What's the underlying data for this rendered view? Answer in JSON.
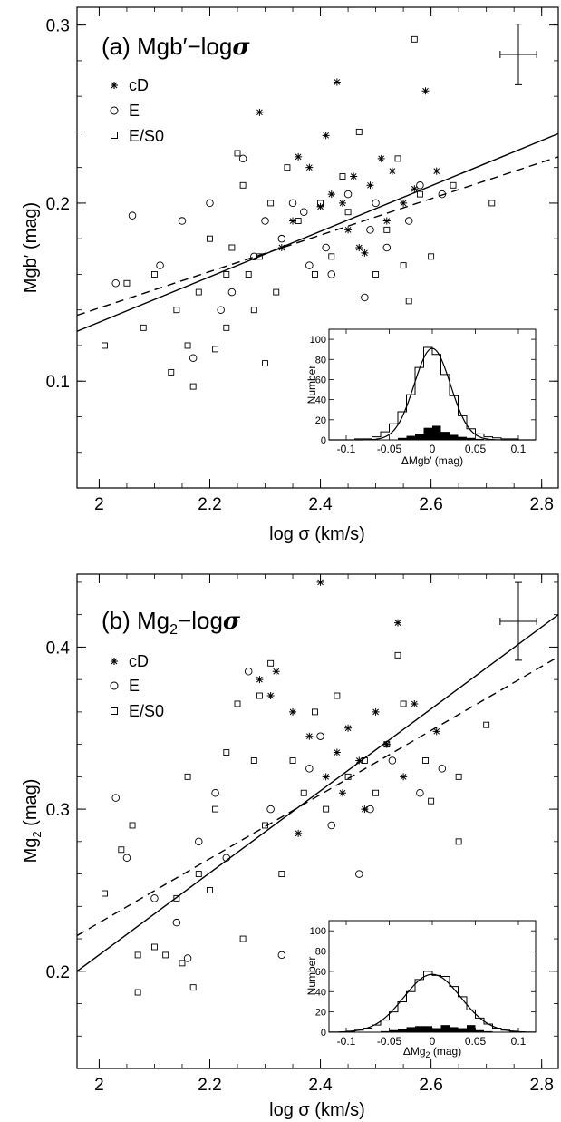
{
  "chart_data": [
    {
      "type": "scatter",
      "panel_label": "(a) Mgb′−logσ",
      "title_parts": {
        "prefix": "(a) Mgb′−log",
        "sigma": "σ"
      },
      "xlabel": "log σ (km/s)",
      "ylabel": "Mgb′ (mag)",
      "xlim": [
        1.96,
        2.83
      ],
      "ylim": [
        0.04,
        0.31
      ],
      "xticks": [
        2,
        2.2,
        2.4,
        2.6,
        2.8
      ],
      "xtick_labels": [
        "2",
        "2.2",
        "2.4",
        "2.6",
        "2.8"
      ],
      "yticks": [
        0.1,
        0.2,
        0.3
      ],
      "ytick_labels": [
        "0.1",
        "0.2",
        "0.3"
      ],
      "legend": [
        "cD",
        "E",
        "E/S0"
      ],
      "legend_position": "top-left",
      "fit_lines": [
        {
          "style": "solid",
          "x": [
            1.96,
            2.83
          ],
          "y": [
            0.128,
            0.239
          ]
        },
        {
          "style": "dashed",
          "x": [
            1.96,
            2.83
          ],
          "y": [
            0.137,
            0.226
          ]
        }
      ],
      "error_bar": {
        "position": "top-right",
        "xerr": 0.033,
        "yerr": 0.017
      },
      "series": [
        {
          "name": "cD",
          "marker": "asterisk",
          "x": [
            2.29,
            2.33,
            2.36,
            2.38,
            2.41,
            2.42,
            2.43,
            2.44,
            2.45,
            2.46,
            2.47,
            2.49,
            2.51,
            2.52,
            2.53,
            2.55,
            2.57,
            2.59,
            2.61,
            2.35,
            2.4,
            2.48
          ],
          "y": [
            0.251,
            0.175,
            0.226,
            0.22,
            0.238,
            0.205,
            0.268,
            0.2,
            0.185,
            0.215,
            0.175,
            0.21,
            0.225,
            0.19,
            0.218,
            0.2,
            0.208,
            0.263,
            0.218,
            0.19,
            0.198,
            0.172
          ]
        },
        {
          "name": "E",
          "marker": "circle",
          "x": [
            2.03,
            2.06,
            2.11,
            2.15,
            2.2,
            2.26,
            2.3,
            2.33,
            2.37,
            2.41,
            2.45,
            2.49,
            2.52,
            2.56,
            2.17,
            2.24,
            2.28,
            2.35,
            2.42,
            2.48,
            2.58,
            2.62,
            2.22,
            2.38,
            2.5
          ],
          "y": [
            0.155,
            0.193,
            0.165,
            0.19,
            0.2,
            0.225,
            0.19,
            0.18,
            0.195,
            0.175,
            0.205,
            0.185,
            0.175,
            0.19,
            0.113,
            0.15,
            0.17,
            0.2,
            0.16,
            0.147,
            0.21,
            0.205,
            0.14,
            0.165,
            0.2
          ]
        },
        {
          "name": "E/S0",
          "marker": "square",
          "x": [
            2.01,
            2.05,
            2.08,
            2.1,
            2.13,
            2.14,
            2.16,
            2.17,
            2.18,
            2.2,
            2.21,
            2.23,
            2.24,
            2.25,
            2.26,
            2.27,
            2.28,
            2.29,
            2.3,
            2.31,
            2.32,
            2.34,
            2.36,
            2.39,
            2.4,
            2.42,
            2.44,
            2.45,
            2.47,
            2.5,
            2.52,
            2.54,
            2.56,
            2.58,
            2.6,
            2.64,
            2.71,
            2.57,
            2.55,
            2.23
          ],
          "y": [
            0.12,
            0.155,
            0.13,
            0.16,
            0.105,
            0.14,
            0.12,
            0.097,
            0.15,
            0.18,
            0.118,
            0.13,
            0.175,
            0.228,
            0.21,
            0.16,
            0.14,
            0.17,
            0.11,
            0.2,
            0.15,
            0.22,
            0.19,
            0.16,
            0.2,
            0.17,
            0.215,
            0.195,
            0.24,
            0.16,
            0.185,
            0.225,
            0.145,
            0.205,
            0.17,
            0.21,
            0.2,
            0.292,
            0.165,
            0.16
          ]
        }
      ],
      "inset": {
        "type": "histogram",
        "position": "lower-right",
        "xlabel": "ΔMgb′ (mag)",
        "ylabel": "Number",
        "xlim": [
          -0.12,
          0.12
        ],
        "ylim": [
          0,
          110
        ],
        "xticks": [
          -0.1,
          -0.05,
          0,
          0.05,
          0.1
        ],
        "xtick_labels": [
          "-0.1",
          "-0.05",
          "0",
          "0.05",
          "0.1"
        ],
        "yticks": [
          0,
          20,
          40,
          60,
          80,
          100
        ],
        "ytick_labels": [
          "0",
          "20",
          "40",
          "60",
          "80",
          "100"
        ],
        "bin_width": 0.01,
        "bin_edges": [
          -0.1,
          -0.09,
          -0.08,
          -0.07,
          -0.06,
          -0.05,
          -0.04,
          -0.03,
          -0.02,
          -0.01,
          0,
          0.01,
          0.02,
          0.03,
          0.04,
          0.05,
          0.06,
          0.07,
          0.08,
          0.09,
          0.1
        ],
        "counts_all": [
          0,
          1,
          1,
          3,
          8,
          16,
          28,
          45,
          72,
          92,
          85,
          65,
          44,
          24,
          11,
          6,
          3,
          2,
          1,
          1
        ],
        "counts_cd": [
          0,
          0,
          0,
          0,
          0,
          0,
          2,
          4,
          6,
          12,
          14,
          8,
          5,
          3,
          2,
          1,
          0,
          0,
          0,
          0
        ],
        "gaussian": {
          "mean": 0.0,
          "sigma": 0.021,
          "peak": 91
        }
      }
    },
    {
      "type": "scatter",
      "panel_label": "(b) Mg2−logσ",
      "title_parts": {
        "prefix": "(b) Mg",
        "sub": "2",
        "suffix": "−log",
        "sigma": "σ"
      },
      "xlabel": "log σ (km/s)",
      "ylabel": "Mg2 (mag)",
      "ylabel_parts": {
        "prefix": "Mg",
        "sub": "2",
        "suffix": " (mag)"
      },
      "xlim": [
        1.96,
        2.83
      ],
      "ylim": [
        0.14,
        0.445
      ],
      "xticks": [
        2,
        2.2,
        2.4,
        2.6,
        2.8
      ],
      "xtick_labels": [
        "2",
        "2.2",
        "2.4",
        "2.6",
        "2.8"
      ],
      "yticks": [
        0.2,
        0.3,
        0.4
      ],
      "ytick_labels": [
        "0.2",
        "0.3",
        "0.4"
      ],
      "legend": [
        "cD",
        "E",
        "E/S0"
      ],
      "legend_position": "top-left",
      "fit_lines": [
        {
          "style": "solid",
          "x": [
            1.96,
            2.83
          ],
          "y": [
            0.2,
            0.42
          ]
        },
        {
          "style": "dashed",
          "x": [
            1.96,
            2.83
          ],
          "y": [
            0.222,
            0.394
          ]
        }
      ],
      "error_bar": {
        "position": "top-right",
        "xerr": 0.033,
        "yerr": 0.024
      },
      "series": [
        {
          "name": "cD",
          "marker": "asterisk",
          "x": [
            2.29,
            2.31,
            2.32,
            2.35,
            2.38,
            2.4,
            2.41,
            2.43,
            2.45,
            2.47,
            2.5,
            2.52,
            2.54,
            2.55,
            2.57,
            2.61,
            2.44,
            2.48,
            2.36
          ],
          "y": [
            0.38,
            0.37,
            0.385,
            0.36,
            0.345,
            0.44,
            0.32,
            0.335,
            0.35,
            0.33,
            0.36,
            0.34,
            0.415,
            0.32,
            0.365,
            0.348,
            0.31,
            0.3,
            0.285
          ]
        },
        {
          "name": "E",
          "marker": "circle",
          "x": [
            2.03,
            2.05,
            2.14,
            2.18,
            2.21,
            2.27,
            2.33,
            2.38,
            2.42,
            2.47,
            2.53,
            2.58,
            2.62,
            2.31,
            2.23,
            2.4,
            2.49,
            2.16,
            2.1
          ],
          "y": [
            0.307,
            0.27,
            0.23,
            0.28,
            0.31,
            0.385,
            0.21,
            0.325,
            0.29,
            0.26,
            0.33,
            0.31,
            0.325,
            0.3,
            0.27,
            0.345,
            0.3,
            0.208,
            0.245
          ]
        },
        {
          "name": "E/S0",
          "marker": "square",
          "x": [
            2.01,
            2.04,
            2.06,
            2.07,
            2.1,
            2.12,
            2.14,
            2.16,
            2.17,
            2.18,
            2.2,
            2.21,
            2.23,
            2.25,
            2.26,
            2.28,
            2.29,
            2.3,
            2.31,
            2.33,
            2.35,
            2.37,
            2.39,
            2.41,
            2.43,
            2.45,
            2.48,
            2.5,
            2.52,
            2.55,
            2.59,
            2.65,
            2.7,
            2.54,
            2.6,
            2.65,
            2.07,
            2.15
          ],
          "y": [
            0.248,
            0.275,
            0.29,
            0.187,
            0.215,
            0.21,
            0.245,
            0.32,
            0.19,
            0.26,
            0.25,
            0.3,
            0.335,
            0.365,
            0.22,
            0.33,
            0.37,
            0.29,
            0.39,
            0.26,
            0.33,
            0.31,
            0.36,
            0.3,
            0.37,
            0.32,
            0.33,
            0.31,
            0.34,
            0.365,
            0.33,
            0.28,
            0.352,
            0.395,
            0.305,
            0.32,
            0.21,
            0.205
          ]
        }
      ],
      "inset": {
        "type": "histogram",
        "position": "lower-right",
        "xlabel": "ΔMg2 (mag)",
        "xlabel_parts": {
          "prefix": "ΔMg",
          "sub": "2",
          "suffix": " (mag)"
        },
        "ylabel": "Number",
        "xlim": [
          -0.12,
          0.12
        ],
        "ylim": [
          0,
          110
        ],
        "xticks": [
          -0.1,
          -0.05,
          0,
          0.05,
          0.1
        ],
        "xtick_labels": [
          "-0.1",
          "-0.05",
          "0",
          "0.05",
          "0.1"
        ],
        "yticks": [
          0,
          20,
          40,
          60,
          80,
          100
        ],
        "ytick_labels": [
          "0",
          "20",
          "40",
          "60",
          "80",
          "100"
        ],
        "bin_width": 0.01,
        "bin_edges": [
          -0.1,
          -0.09,
          -0.08,
          -0.07,
          -0.06,
          -0.05,
          -0.04,
          -0.03,
          -0.02,
          -0.01,
          0,
          0.01,
          0.02,
          0.03,
          0.04,
          0.05,
          0.06,
          0.07,
          0.08,
          0.09,
          0.1
        ],
        "counts_all": [
          1,
          2,
          4,
          7,
          12,
          20,
          30,
          40,
          52,
          60,
          56,
          55,
          45,
          35,
          22,
          14,
          8,
          4,
          2,
          1
        ],
        "counts_cd": [
          0,
          0,
          0,
          0,
          1,
          2,
          3,
          5,
          6,
          6,
          4,
          7,
          5,
          4,
          7,
          2,
          1,
          0,
          0,
          0
        ],
        "gaussian": {
          "mean": 0.0,
          "sigma": 0.033,
          "peak": 57
        }
      }
    }
  ]
}
